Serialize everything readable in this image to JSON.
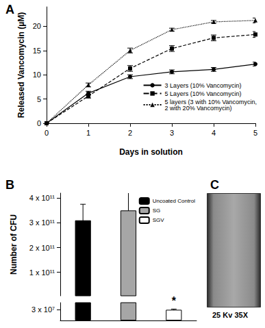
{
  "chart_data": [
    {
      "type": "line",
      "title": "A",
      "x_label": "Days in solution",
      "y_label": "Released Vancomycin (µM)",
      "x": [
        0,
        1,
        2,
        3,
        4,
        5
      ],
      "xlim": [
        0,
        5
      ],
      "xticks": [
        0,
        1,
        2,
        3,
        4,
        5
      ],
      "ylim": [
        0,
        24
      ],
      "yticks": [
        0,
        5,
        10,
        15,
        20
      ],
      "grid": false,
      "legend": "lower right",
      "series": [
        {
          "name": "3 Layers (10% Vancomycin)",
          "color": "#000000",
          "marker": "circle",
          "line_style": "solid",
          "values": [
            0,
            6.2,
            9.6,
            10.6,
            11.1,
            12.2
          ],
          "errors": [
            0,
            0.4,
            0.4,
            0.4,
            0.4,
            0.4
          ]
        },
        {
          "name": "5 Layers (10% Vancomycin)",
          "color": "#000000",
          "marker": "square",
          "line_style": "dashed",
          "values": [
            0,
            5.6,
            11.3,
            15.4,
            17.6,
            18.3
          ],
          "errors": [
            0,
            0.4,
            0.6,
            0.6,
            0.6,
            0.6
          ]
        },
        {
          "name": "5 layers (3 with 10% Vancomycin,\n2 with 20% Vancomycin)",
          "color": "#000000",
          "marker": "triangle",
          "line_style": "dotted",
          "values": [
            0,
            7.9,
            15.0,
            19.3,
            20.9,
            21.2
          ],
          "errors": [
            0,
            0.4,
            0.5,
            0.3,
            0.3,
            0.5
          ]
        }
      ]
    },
    {
      "type": "bar",
      "title": "B",
      "y_label": "Number of CFU",
      "categories": [
        "Uncoated Control",
        "SG",
        "SGV"
      ],
      "values": [
        310000000000.0,
        350000000000.0,
        30000000.0
      ],
      "errors": [
        65000000000.0,
        85000000000.0,
        2000000.0
      ],
      "colors": [
        "#000000",
        "#a6a6a6",
        "#ffffff"
      ],
      "ylim": [
        0,
        420000000000.0
      ],
      "y_break": [
        50000000.0,
        5000000000.0
      ],
      "yticks": [
        {
          "value": 30000000.0,
          "label": "3 x 10⁷"
        },
        {
          "value": 100000000000.0,
          "label": "1 x 10¹¹"
        },
        {
          "value": 200000000000.0,
          "label": "2 x 10¹¹"
        },
        {
          "value": 300000000000.0,
          "label": "3 x 10¹¹"
        },
        {
          "value": 400000000000.0,
          "label": "4 x 10¹¹"
        }
      ],
      "grid": false,
      "legend": "upper right",
      "tick_labels": "y",
      "annotations": [
        {
          "text": "*",
          "category": "SGV"
        }
      ]
    },
    {
      "type": "image",
      "title": "C",
      "caption": "25 Kv 35X"
    }
  ]
}
